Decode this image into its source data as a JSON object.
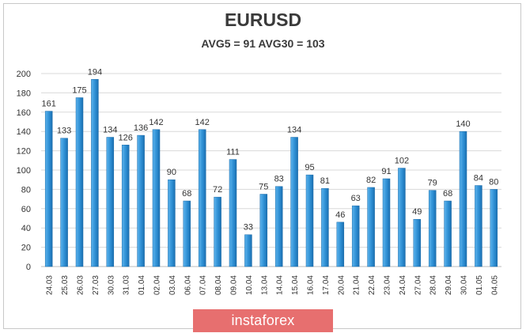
{
  "brand": {
    "label": "instaforex",
    "color": "#e76f6f"
  },
  "chart_data": {
    "type": "bar",
    "title": "EURUSD",
    "subtitle": "AVG5 = 91 AVG30 = 103",
    "xlabel": "",
    "ylabel": "",
    "ylim": [
      0,
      200
    ],
    "yticks": [
      0,
      20,
      40,
      60,
      80,
      100,
      120,
      140,
      160,
      180,
      200
    ],
    "grid": true,
    "bar_color": "#2e8fd4",
    "categories": [
      "24.03",
      "25.03",
      "26.03",
      "27.03",
      "30.03",
      "31.03",
      "01.04",
      "02.04",
      "03.04",
      "06.04",
      "07.04",
      "08.04",
      "09.04",
      "10.04",
      "13.04",
      "14.04",
      "15.04",
      "16.04",
      "17.04",
      "20.04",
      "21.04",
      "22.04",
      "23.04",
      "24.04",
      "27.04",
      "28.04",
      "29.04",
      "30.04",
      "01.05",
      "04.05"
    ],
    "values": [
      161,
      133,
      175,
      194,
      134,
      126,
      136,
      142,
      90,
      68,
      142,
      72,
      111,
      33,
      75,
      83,
      134,
      95,
      81,
      46,
      63,
      82,
      91,
      102,
      49,
      79,
      68,
      140,
      84,
      80
    ]
  }
}
